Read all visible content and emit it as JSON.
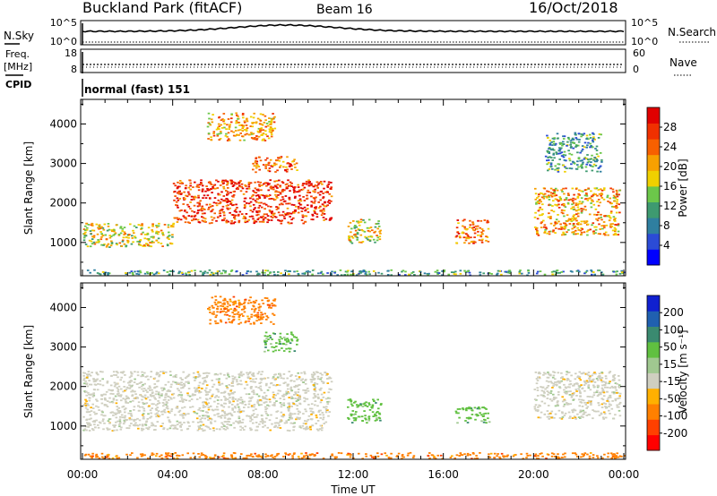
{
  "header": {
    "station": "Buckland Park (fitACF)",
    "beam": "Beam 16",
    "date": "16/Oct/2018"
  },
  "panels": {
    "nsky": {
      "label": "N.Sky",
      "left_ticks": [
        "10^5",
        "10^0"
      ],
      "right_ticks": [
        "10^5",
        "10^0"
      ],
      "right_label": "N.Search"
    },
    "freq": {
      "label_line1": "Freq.",
      "label_line2": "[MHz]",
      "left_ticks": [
        "18",
        "8"
      ],
      "right_ticks": [
        "60",
        "0"
      ],
      "right_label": "Nave"
    },
    "cpid": {
      "label": "CPID",
      "value": "normal (fast) 151"
    }
  },
  "colors": {
    "power_scale": [
      "#0000ff",
      "#2b4bd6",
      "#2f7fa0",
      "#3e9a70",
      "#6cc74a",
      "#f0d000",
      "#f7a000",
      "#f76000",
      "#f03000",
      "#e00000"
    ],
    "velocity_scale": [
      "#ff0000",
      "#ff4000",
      "#ff8000",
      "#ffb000",
      "#cfcfc0",
      "#a0c890",
      "#60c040",
      "#3a8a70",
      "#2060b0",
      "#1020d0"
    ],
    "ground_scatter": "#a8a8a0"
  },
  "chart_data": [
    {
      "type": "heatmap",
      "name": "power",
      "xlabel": "",
      "ylabel": "Slant Range [km]",
      "xlim": [
        "00:00",
        "24:00"
      ],
      "ylim": [
        180,
        4600
      ],
      "yticks": [
        1000,
        2000,
        3000,
        4000
      ],
      "colorbar": {
        "label": "Power [dB]",
        "range": [
          0,
          32
        ],
        "tick_labels": [
          "4",
          "8",
          "12",
          "16",
          "20",
          "24",
          "28"
        ]
      },
      "echo_regions_hours_km": [
        {
          "t0": 0.0,
          "t1": 24.0,
          "r0": 190,
          "r1": 320,
          "value": 10
        },
        {
          "t0": 0.0,
          "t1": 4.0,
          "r0": 900,
          "r1": 1500,
          "value": 18
        },
        {
          "t0": 4.0,
          "t1": 11.0,
          "r0": 1500,
          "r1": 2600,
          "value": 28
        },
        {
          "t0": 7.5,
          "t1": 9.5,
          "r0": 2800,
          "r1": 3200,
          "value": 26
        },
        {
          "t0": 11.7,
          "t1": 13.2,
          "r0": 1000,
          "r1": 1600,
          "value": 16
        },
        {
          "t0": 16.5,
          "t1": 18.0,
          "r0": 1000,
          "r1": 1600,
          "value": 24
        },
        {
          "t0": 20.0,
          "t1": 23.8,
          "r0": 1200,
          "r1": 2400,
          "value": 22
        },
        {
          "t0": 20.5,
          "t1": 23.0,
          "r0": 2800,
          "r1": 3800,
          "value": 12
        },
        {
          "t0": 5.5,
          "t1": 8.5,
          "r0": 3600,
          "r1": 4300,
          "value": 20
        }
      ]
    },
    {
      "type": "heatmap",
      "name": "velocity",
      "xlabel": "Time UT",
      "ylabel": "Slant Range [km]",
      "xlim": [
        "00:00",
        "24:00"
      ],
      "ylim": [
        180,
        4600
      ],
      "xtick_labels": [
        "00:00",
        "04:00",
        "08:00",
        "12:00",
        "16:00",
        "20:00",
        "00:00"
      ],
      "yticks": [
        1000,
        2000,
        3000,
        4000
      ],
      "colorbar": {
        "label": "Velocity [m s⁻¹]",
        "tick_labels": [
          "200",
          "100",
          "50",
          "15",
          "-15",
          "-50",
          "-100",
          "-200"
        ]
      },
      "echo_regions_hours_km": [
        {
          "t0": 0.0,
          "t1": 24.0,
          "r0": 190,
          "r1": 340,
          "value": -50
        },
        {
          "t0": 0.0,
          "t1": 11.0,
          "r0": 900,
          "r1": 2400,
          "value": 0
        },
        {
          "t0": 8.0,
          "t1": 9.5,
          "r0": 2900,
          "r1": 3400,
          "value": 50
        },
        {
          "t0": 11.7,
          "t1": 13.2,
          "r0": 1100,
          "r1": 1700,
          "value": 50
        },
        {
          "t0": 16.5,
          "t1": 18.0,
          "r0": 1100,
          "r1": 1500,
          "value": 50
        },
        {
          "t0": 20.0,
          "t1": 23.8,
          "r0": 1200,
          "r1": 2400,
          "value": 0
        },
        {
          "t0": 5.5,
          "t1": 8.5,
          "r0": 3600,
          "r1": 4300,
          "value": -50
        }
      ]
    }
  ]
}
